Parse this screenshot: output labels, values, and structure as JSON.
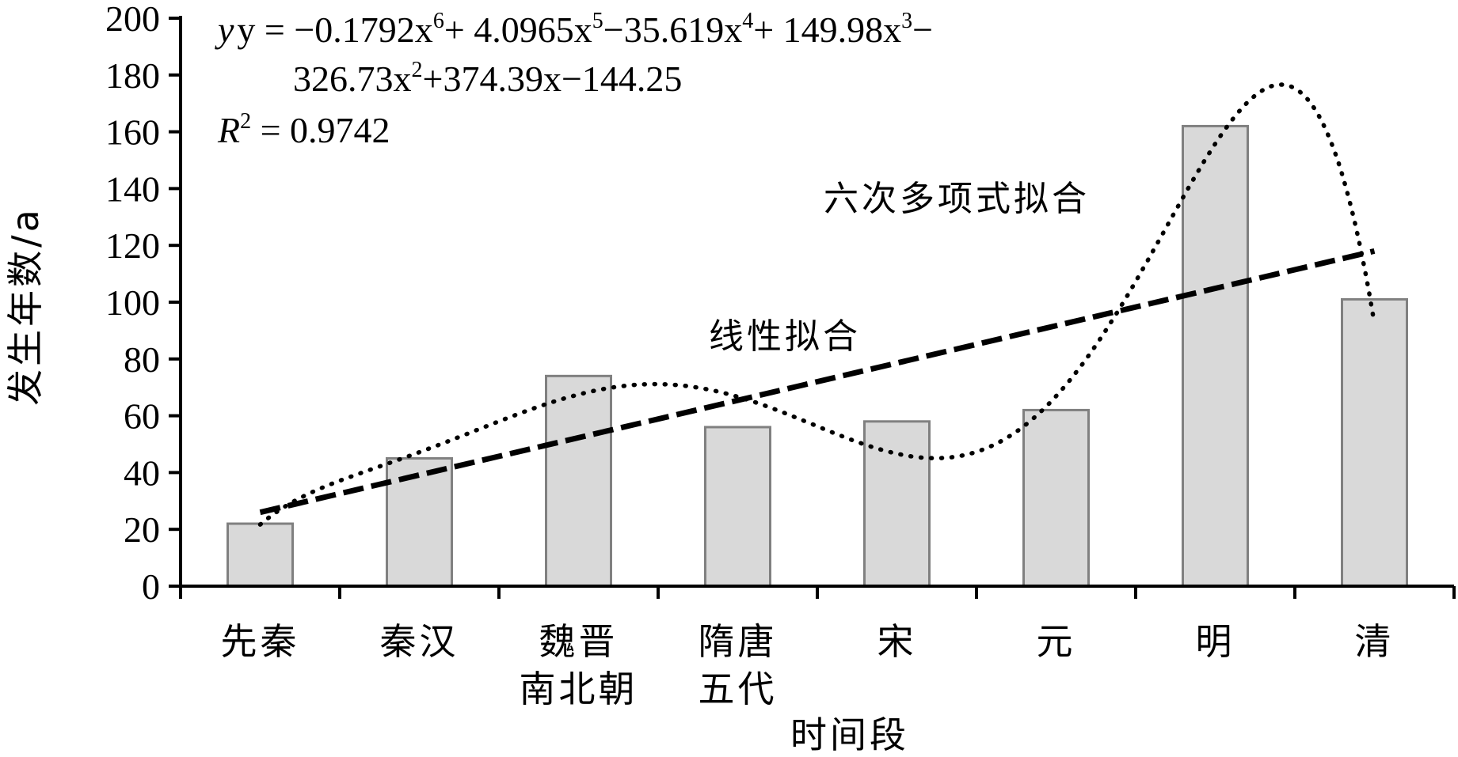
{
  "chart_data": {
    "type": "bar",
    "categories": [
      [
        "先秦"
      ],
      [
        "秦汉"
      ],
      [
        "魏晋",
        "南北朝"
      ],
      [
        "隋唐",
        "五代"
      ],
      [
        "宋"
      ],
      [
        "元"
      ],
      [
        "明"
      ],
      [
        "清"
      ]
    ],
    "values": [
      22,
      45,
      74,
      56,
      58,
      62,
      162,
      101
    ],
    "ylim": [
      0,
      200
    ],
    "yticks": [
      0,
      20,
      40,
      60,
      80,
      100,
      120,
      140,
      160,
      180,
      200
    ],
    "xlabel": "时间段",
    "ylabel": "发生年数/a",
    "grid": false,
    "colors": {
      "bar_fill": "#d9d9d9",
      "bar_stroke": "#808080",
      "axis": "#000000"
    },
    "trendlines": [
      {
        "label": "线性拟合",
        "kind": "linear",
        "style": "dashed",
        "values": [
          26,
          39,
          52,
          66,
          79,
          92,
          105,
          118
        ]
      },
      {
        "label": "六次多项式拟合",
        "kind": "polynomial-6",
        "style": "dotted",
        "coefficients": [
          -0.1792,
          4.0965,
          -35.619,
          149.98,
          -326.73,
          374.39,
          -144.25
        ]
      }
    ],
    "annotation": {
      "equation_line1": [
        "y = −0.1792x",
        "6",
        "+ 4.0965x",
        "5",
        "−35.619x",
        "4",
        "+ 149.98x",
        "3",
        "−"
      ],
      "equation_line2": [
        "326.73x",
        "2",
        "+374.39x−144.25"
      ],
      "r2_label": [
        "R",
        "2",
        " = 0.9742"
      ]
    }
  }
}
